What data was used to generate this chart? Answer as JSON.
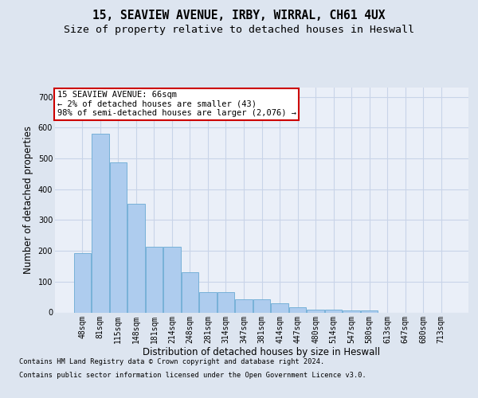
{
  "title_line1": "15, SEAVIEW AVENUE, IRBY, WIRRAL, CH61 4UX",
  "title_line2": "Size of property relative to detached houses in Heswall",
  "xlabel": "Distribution of detached houses by size in Heswall",
  "ylabel": "Number of detached properties",
  "categories": [
    "48sqm",
    "81sqm",
    "115sqm",
    "148sqm",
    "181sqm",
    "214sqm",
    "248sqm",
    "281sqm",
    "314sqm",
    "347sqm",
    "381sqm",
    "414sqm",
    "447sqm",
    "480sqm",
    "514sqm",
    "547sqm",
    "580sqm",
    "613sqm",
    "647sqm",
    "680sqm",
    "713sqm"
  ],
  "values": [
    192,
    580,
    487,
    352,
    213,
    213,
    130,
    65,
    65,
    43,
    43,
    30,
    18,
    10,
    10,
    7,
    7,
    0,
    0,
    0,
    0
  ],
  "bar_color": "#aeccee",
  "bar_edge_color": "#6aaad4",
  "annotation_text": "15 SEAVIEW AVENUE: 66sqm\n← 2% of detached houses are smaller (43)\n98% of semi-detached houses are larger (2,076) →",
  "annotation_facecolor": "#ffffff",
  "annotation_edgecolor": "#cc0000",
  "ylim": [
    0,
    730
  ],
  "yticks": [
    0,
    100,
    200,
    300,
    400,
    500,
    600,
    700
  ],
  "bg_color": "#dde5f0",
  "plot_bg_color": "#eaeff8",
  "grid_color": "#c8d4e8",
  "title_fontsize": 10.5,
  "subtitle_fontsize": 9.5,
  "ylabel_fontsize": 8.5,
  "xlabel_fontsize": 8.5,
  "tick_fontsize": 7,
  "ann_fontsize": 7.5,
  "footer_fontsize": 6.2,
  "footer_line1": "Contains HM Land Registry data © Crown copyright and database right 2024.",
  "footer_line2": "Contains public sector information licensed under the Open Government Licence v3.0."
}
